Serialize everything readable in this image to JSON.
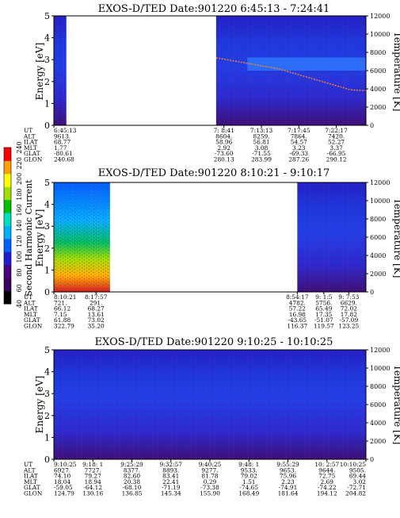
{
  "colorbar": {
    "label": "Second Harmonic Current",
    "ticks": [
      "40",
      "60",
      "80",
      "100",
      "120",
      "140",
      "160",
      "180",
      "200",
      "220",
      "240"
    ],
    "colors": [
      "#000000",
      "#3a0060",
      "#4b0082",
      "#1f1fd0",
      "#0060ff",
      "#00b0ff",
      "#00e0c0",
      "#00c000",
      "#a0e000",
      "#ffff00",
      "#ffa000",
      "#ff0000"
    ]
  },
  "chart_data": [
    {
      "type": "heatmap",
      "title": "EXOS-D/TED   Date:901220  6:45:13 - 7:24:41",
      "ylabel": "Energy [eV]",
      "ylabel_right": "Temperature [K]",
      "ylim": [
        0,
        5
      ],
      "ylim_right": [
        0,
        12000
      ],
      "yticks": [
        "0",
        "1",
        "2",
        "3",
        "4",
        "5"
      ],
      "yticks_right": [
        "0",
        "2000",
        "4000",
        "6000",
        "8000",
        "10000",
        "12000"
      ],
      "time_rows": [
        "UT",
        "ALT",
        "ILAT",
        "MLT",
        "GLAT",
        "GLON"
      ],
      "time_columns": [
        {
          "UT": "6:45:13",
          "ALT": "9613.",
          "ILAT": "68.77",
          "MLT": "1.77",
          "GLAT": "-80.61",
          "GLON": "240.68"
        },
        {
          "UT": "7: 8:41",
          "ALT": "8604.",
          "ILAT": "58.96",
          "MLT": "2.92",
          "GLAT": "-73.60",
          "GLON": "280.13"
        },
        {
          "UT": "7:13:13",
          "ALT": "8259.",
          "ILAT": "56.81",
          "MLT": "3.08",
          "GLAT": "-71.55",
          "GLON": "283.99"
        },
        {
          "UT": "7:17:45",
          "ALT": "7864.",
          "ILAT": "54.57",
          "MLT": "3.23",
          "GLAT": "-69.33",
          "GLON": "287.26"
        },
        {
          "UT": "7:22:17",
          "ALT": "7420.",
          "ILAT": "52.27",
          "MLT": "3.37",
          "GLAT": "-66.95",
          "GLON": "290.12"
        }
      ],
      "data_coverage": [
        [
          0.0,
          0.04
        ],
        [
          0.52,
          1.0
        ]
      ],
      "temperature_series": [
        {
          "t": 0.52,
          "K": 7400
        },
        {
          "t": 0.62,
          "K": 6800
        },
        {
          "t": 0.72,
          "K": 6200
        },
        {
          "t": 0.8,
          "K": 5400
        },
        {
          "t": 0.88,
          "K": 4600
        },
        {
          "t": 0.95,
          "K": 3900
        },
        {
          "t": 1.0,
          "K": 3800
        }
      ]
    },
    {
      "type": "heatmap",
      "title": "EXOS-D/TED   Date:901220  8:10:21 - 9:10:17",
      "ylabel": "Energy [eV]",
      "ylabel_right": "Temperature [K]",
      "ylim": [
        0,
        5
      ],
      "ylim_right": [
        0,
        12000
      ],
      "yticks": [
        "0",
        "1",
        "2",
        "3",
        "4",
        "5"
      ],
      "yticks_right": [
        "0",
        "2000",
        "4000",
        "6000",
        "8000",
        "10000",
        "12000"
      ],
      "time_rows": [
        "UT",
        "ALT",
        "ILAT",
        "MLT",
        "GLAT",
        "GLON"
      ],
      "time_columns": [
        {
          "UT": "8:10:21",
          "ALT": "721.",
          "ILAT": "66.12",
          "MLT": "7.15",
          "GLAT": "61.88",
          "GLON": "322.79"
        },
        {
          "UT": "8:17:57",
          "ALT": "291.",
          "ILAT": "68.27",
          "MLT": "13.61",
          "GLAT": "73.02",
          "GLON": "35.20"
        },
        {
          "UT": "8:54:17",
          "ALT": "4782.",
          "ILAT": "57.22",
          "MLT": "16.98",
          "GLAT": "-43.65",
          "GLON": "116.37"
        },
        {
          "UT": "9: 1:5",
          "ALT": "5756.",
          "ILAT": "65.49",
          "MLT": "17.35",
          "GLAT": "-51.07",
          "GLON": "119.57"
        },
        {
          "UT": "9: 7:53",
          "ALT": "6629.",
          "ILAT": "72.02",
          "MLT": "17.82",
          "GLAT": "-57.09",
          "GLON": "123.25"
        }
      ],
      "data_coverage": [
        [
          0.0,
          0.18
        ],
        [
          0.78,
          1.0
        ]
      ]
    },
    {
      "type": "heatmap",
      "title": "EXOS-D/TED   Date:901220  9:10:25 - 10:10:25",
      "ylabel": "Energy [eV]",
      "ylabel_right": "Temperature [K]",
      "ylim": [
        0,
        5
      ],
      "ylim_right": [
        0,
        12000
      ],
      "yticks": [
        "0",
        "1",
        "2",
        "3",
        "4",
        "5"
      ],
      "yticks_right": [
        "0",
        "2000",
        "4000",
        "6000",
        "8000",
        "10000",
        "12000"
      ],
      "time_rows": [
        "UT",
        "ALT",
        "ILAT",
        "MLT",
        "GLAT",
        "GLON"
      ],
      "time_columns": [
        {
          "UT": "9:10:25",
          "ALT": "6927.",
          "ILAT": "74.10",
          "MLT": "18.04",
          "GLAT": "-59.05",
          "GLON": "124.79"
        },
        {
          "UT": "9:18: 1",
          "ALT": "7727.",
          "ILAT": "79.27",
          "MLT": "18.94",
          "GLAT": "-64.12",
          "GLON": "130.16"
        },
        {
          "UT": "9:25:29",
          "ALT": "8377.",
          "ILAT": "82.60",
          "MLT": "20.38",
          "GLAT": "-68.10",
          "GLON": "136.85"
        },
        {
          "UT": "9:32:57",
          "ALT": "8893.",
          "ILAT": "83.41",
          "MLT": "22.41",
          "GLAT": "-71.19",
          "GLON": "145.34"
        },
        {
          "UT": "9:40:25",
          "ALT": "9277.",
          "ILAT": "81.78",
          "MLT": "0.29",
          "GLAT": "-73.38",
          "GLON": "155.90"
        },
        {
          "UT": "9:48: 1",
          "ALT": "9533.",
          "ILAT": "79.02",
          "MLT": "1.51",
          "GLAT": "-74.65",
          "GLON": "168.49"
        },
        {
          "UT": "9:55:29",
          "ALT": "9653.",
          "ILAT": "75.96",
          "MLT": "2.23",
          "GLAT": "-74.91",
          "GLON": "181.64"
        },
        {
          "UT": "10: 2:57",
          "ALT": "9644.",
          "ILAT": "72.75",
          "MLT": "2.69",
          "GLAT": "-74.22",
          "GLON": "194.12"
        },
        {
          "UT": "10:10:25",
          "ALT": "9505.",
          "ILAT": "69.44",
          "MLT": "3.02",
          "GLAT": "-72.71",
          "GLON": "204.82"
        }
      ],
      "data_coverage": [
        [
          0.0,
          1.0
        ]
      ]
    }
  ]
}
